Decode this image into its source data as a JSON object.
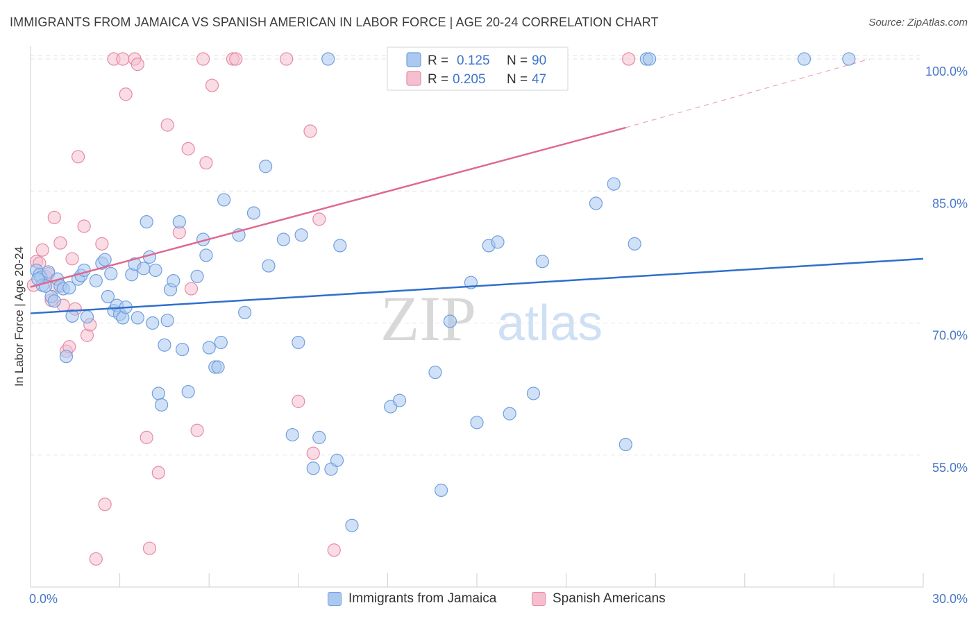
{
  "title": "IMMIGRANTS FROM JAMAICA VS SPANISH AMERICAN IN LABOR FORCE | AGE 20-24 CORRELATION CHART",
  "source": "Source: ZipAtlas.com",
  "watermark": {
    "zip": "ZIP",
    "atlas": "atlas"
  },
  "colors": {
    "blue_fill": "#aac8f0",
    "blue_stroke": "#6f9fdd",
    "blue_line": "#2f6fcc",
    "pink_fill": "#f6bfcf",
    "pink_stroke": "#e58aa6",
    "pink_line": "#e06890",
    "axis_text": "#4a78c7"
  },
  "legend": {
    "r_label": "R =",
    "n_label": "N =",
    "series": [
      {
        "name": "Immigrants from Jamaica",
        "r": "0.125",
        "n": "90"
      },
      {
        "name": "Spanish Americans",
        "r": "0.205",
        "n": "47"
      }
    ]
  },
  "chart_data": {
    "type": "scatter",
    "title": "IMMIGRANTS FROM JAMAICA VS SPANISH AMERICAN IN LABOR FORCE | AGE 20-24 CORRELATION CHART",
    "xlabel": "",
    "ylabel": "In Labor Force | Age 20-24",
    "xlim": [
      0,
      30
    ],
    "ylim": [
      40,
      101.5
    ],
    "x_tick_labels": [
      "0.0%",
      "30.0%"
    ],
    "y_ticks": [
      55,
      70,
      85,
      100
    ],
    "y_tick_labels": [
      "55.0%",
      "70.0%",
      "85.0%",
      "100.0%"
    ],
    "grid": true,
    "legend_position": "top-center",
    "series": [
      {
        "name": "Immigrants from Jamaica",
        "trend": {
          "x": [
            0,
            30
          ],
          "y": [
            71.1,
            77.3
          ]
        },
        "points": [
          [
            0.2,
            76.0
          ],
          [
            0.3,
            75.5
          ],
          [
            0.35,
            75.2
          ],
          [
            0.4,
            74.3
          ],
          [
            0.5,
            74.2
          ],
          [
            0.6,
            75.8
          ],
          [
            0.7,
            73.0
          ],
          [
            0.8,
            72.5
          ],
          [
            0.9,
            75.0
          ],
          [
            1.0,
            74.2
          ],
          [
            1.1,
            73.9
          ],
          [
            1.2,
            66.2
          ],
          [
            1.3,
            74.0
          ],
          [
            1.4,
            70.8
          ],
          [
            1.6,
            75.0
          ],
          [
            1.7,
            75.4
          ],
          [
            1.8,
            76.0
          ],
          [
            1.9,
            70.7
          ],
          [
            2.2,
            74.8
          ],
          [
            2.4,
            76.8
          ],
          [
            2.5,
            77.2
          ],
          [
            2.6,
            73.0
          ],
          [
            2.7,
            75.6
          ],
          [
            2.8,
            71.4
          ],
          [
            2.9,
            72.0
          ],
          [
            3.0,
            71.0
          ],
          [
            3.1,
            70.6
          ],
          [
            3.2,
            71.8
          ],
          [
            3.4,
            75.5
          ],
          [
            3.5,
            76.7
          ],
          [
            3.6,
            70.6
          ],
          [
            3.8,
            76.2
          ],
          [
            3.9,
            81.5
          ],
          [
            4.0,
            77.5
          ],
          [
            4.1,
            70.0
          ],
          [
            4.2,
            76.0
          ],
          [
            4.3,
            62.0
          ],
          [
            4.4,
            60.7
          ],
          [
            4.5,
            67.5
          ],
          [
            4.6,
            70.3
          ],
          [
            4.7,
            73.8
          ],
          [
            4.8,
            74.8
          ],
          [
            5.0,
            81.5
          ],
          [
            5.1,
            67.0
          ],
          [
            5.3,
            62.2
          ],
          [
            5.6,
            75.3
          ],
          [
            5.8,
            79.5
          ],
          [
            5.9,
            77.7
          ],
          [
            6.0,
            67.2
          ],
          [
            6.2,
            65.0
          ],
          [
            6.3,
            65.0
          ],
          [
            6.4,
            67.8
          ],
          [
            6.5,
            84.0
          ],
          [
            7.0,
            80.0
          ],
          [
            7.2,
            71.2
          ],
          [
            7.5,
            82.5
          ],
          [
            7.9,
            87.8
          ],
          [
            8.0,
            76.5
          ],
          [
            8.5,
            79.5
          ],
          [
            8.8,
            57.3
          ],
          [
            9.0,
            67.8
          ],
          [
            9.1,
            80.0
          ],
          [
            9.5,
            53.5
          ],
          [
            9.7,
            57.0
          ],
          [
            10.0,
            100.0
          ],
          [
            10.1,
            53.4
          ],
          [
            10.3,
            54.4
          ],
          [
            10.4,
            78.8
          ],
          [
            10.8,
            47.0
          ],
          [
            12.1,
            60.5
          ],
          [
            12.4,
            61.2
          ],
          [
            13.6,
            64.4
          ],
          [
            13.8,
            51.0
          ],
          [
            14.1,
            70.2
          ],
          [
            14.8,
            74.6
          ],
          [
            15.0,
            58.7
          ],
          [
            15.4,
            78.8
          ],
          [
            15.7,
            79.2
          ],
          [
            16.1,
            59.7
          ],
          [
            16.9,
            62.0
          ],
          [
            17.2,
            77.0
          ],
          [
            19.0,
            83.6
          ],
          [
            19.6,
            85.8
          ],
          [
            20.0,
            56.2
          ],
          [
            20.3,
            79.0
          ],
          [
            20.7,
            100.0
          ],
          [
            20.8,
            100.0
          ],
          [
            26.0,
            100.0
          ],
          [
            27.5,
            100.0
          ],
          [
            0.25,
            75.0
          ]
        ]
      },
      {
        "name": "Spanish Americans",
        "trend": {
          "x": [
            0,
            20.0
          ],
          "y": [
            74.1,
            92.2
          ]
        },
        "trend_dashed": {
          "x": [
            20.0,
            28.2
          ],
          "y": [
            92.2,
            100.0
          ]
        },
        "points": [
          [
            0.1,
            74.3
          ],
          [
            0.2,
            77.0
          ],
          [
            0.3,
            76.8
          ],
          [
            0.4,
            78.3
          ],
          [
            0.5,
            75.3
          ],
          [
            0.6,
            75.6
          ],
          [
            0.7,
            72.6
          ],
          [
            0.8,
            82.0
          ],
          [
            0.85,
            74.1
          ],
          [
            1.0,
            79.1
          ],
          [
            1.1,
            72.0
          ],
          [
            1.2,
            66.8
          ],
          [
            1.3,
            67.3
          ],
          [
            1.4,
            77.3
          ],
          [
            1.5,
            71.6
          ],
          [
            1.6,
            88.9
          ],
          [
            1.8,
            81.0
          ],
          [
            1.9,
            68.6
          ],
          [
            2.0,
            69.8
          ],
          [
            2.2,
            43.2
          ],
          [
            2.4,
            79.0
          ],
          [
            2.5,
            49.4
          ],
          [
            2.8,
            100.0
          ],
          [
            3.1,
            100.0
          ],
          [
            3.2,
            96.0
          ],
          [
            3.5,
            100.0
          ],
          [
            3.6,
            99.4
          ],
          [
            3.9,
            57.0
          ],
          [
            4.0,
            44.4
          ],
          [
            4.3,
            53.0
          ],
          [
            4.6,
            92.5
          ],
          [
            5.0,
            80.3
          ],
          [
            5.3,
            89.8
          ],
          [
            5.4,
            73.9
          ],
          [
            5.6,
            57.8
          ],
          [
            5.8,
            100.0
          ],
          [
            5.9,
            88.2
          ],
          [
            6.1,
            97.0
          ],
          [
            6.8,
            100.0
          ],
          [
            6.9,
            100.0
          ],
          [
            8.6,
            100.0
          ],
          [
            9.0,
            61.1
          ],
          [
            9.4,
            91.8
          ],
          [
            9.5,
            55.2
          ],
          [
            9.7,
            81.8
          ],
          [
            10.2,
            44.2
          ],
          [
            20.1,
            100.0
          ]
        ]
      }
    ]
  }
}
